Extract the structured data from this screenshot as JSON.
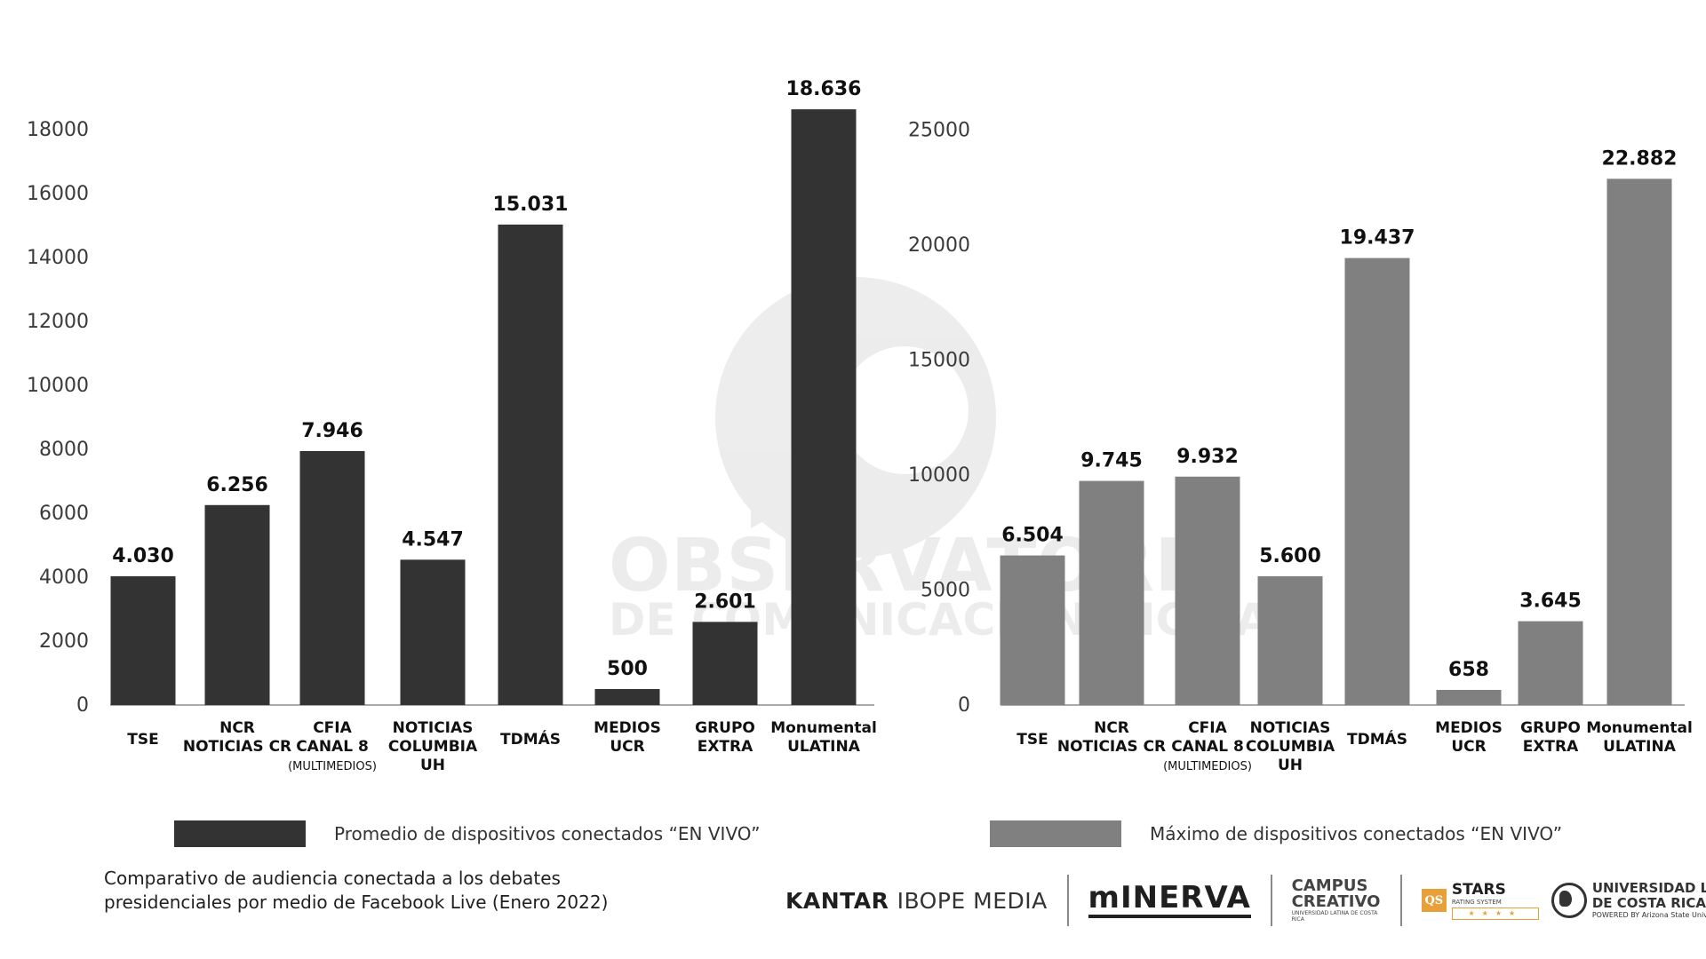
{
  "chart_data": [
    {
      "type": "bar",
      "categories": [
        [
          "TSE"
        ],
        [
          "NCR",
          "NOTICIAS CR"
        ],
        [
          "CFIA",
          "CANAL 8",
          "(MULTIMEDIOS)"
        ],
        [
          "NOTICIAS",
          "COLUMBIA",
          "UH"
        ],
        [
          "TDMÁS"
        ],
        [
          "MEDIOS",
          "UCR"
        ],
        [
          "GRUPO",
          "EXTRA"
        ],
        [
          "Monumental",
          "ULATINA"
        ]
      ],
      "values": [
        4030,
        6256,
        7946,
        4547,
        15031,
        500,
        2601,
        18636
      ],
      "data_labels": [
        "4.030",
        "6.256",
        "7.946",
        "4.547",
        "15.031",
        "500",
        "2.601",
        "18.636"
      ],
      "yticks": [
        0,
        2000,
        4000,
        6000,
        8000,
        10000,
        12000,
        14000,
        16000,
        18000
      ],
      "ylim": [
        0,
        19000
      ],
      "color": "#333333",
      "legend": "Promedio de dispositivos conectados “EN VIVO”"
    },
    {
      "type": "bar",
      "categories": [
        [
          "TSE"
        ],
        [
          "NCR",
          "NOTICIAS CR"
        ],
        [
          "CFIA",
          "CANAL 8",
          "(MULTIMEDIOS)"
        ],
        [
          "NOTICIAS",
          "COLUMBIA",
          "UH"
        ],
        [
          "TDMÁS"
        ],
        [
          "MEDIOS",
          "UCR"
        ],
        [
          "GRUPO",
          "EXTRA"
        ],
        [
          "Monumental",
          "ULATINA"
        ]
      ],
      "values": [
        6504,
        9745,
        9932,
        5600,
        19437,
        658,
        3645,
        22882
      ],
      "data_labels": [
        "6.504",
        "9.745",
        "9.932",
        "5.600",
        "19.437",
        "658",
        "3.645",
        "22.882"
      ],
      "yticks": [
        0,
        5000,
        10000,
        15000,
        20000,
        25000
      ],
      "ylim": [
        0,
        25000
      ],
      "color": "#808080",
      "legend": "Máximo de dispositivos conectados “EN VIVO”"
    }
  ],
  "watermark": {
    "line1": "OBSERVATORIO",
    "line2": "DE COMUNICACIÓN DIGITAL"
  },
  "caption": {
    "line1": "Comparativo de audiencia conectada a los debates",
    "line2": "presidenciales por medio de Facebook Live (Enero 2022)"
  },
  "logos": {
    "kantar_bold": "KANTAR",
    "kantar_light": "IBOPE MEDIA",
    "minerva": "mINERVA",
    "campus_line1": "CAMPUS",
    "campus_line2": "CREATIVO",
    "campus_sub": "UNIVERSIDAD LATINA DE COSTA RICA",
    "qs": "QS",
    "stars": "STARS",
    "stars_sub": "RATING SYSTEM",
    "stars_row": "★★★★",
    "ulatina_line1": "UNIVERSIDAD LATINA",
    "ulatina_line2": "DE COSTA RICA",
    "ulatina_sub": "POWERED BY Arizona State University"
  }
}
